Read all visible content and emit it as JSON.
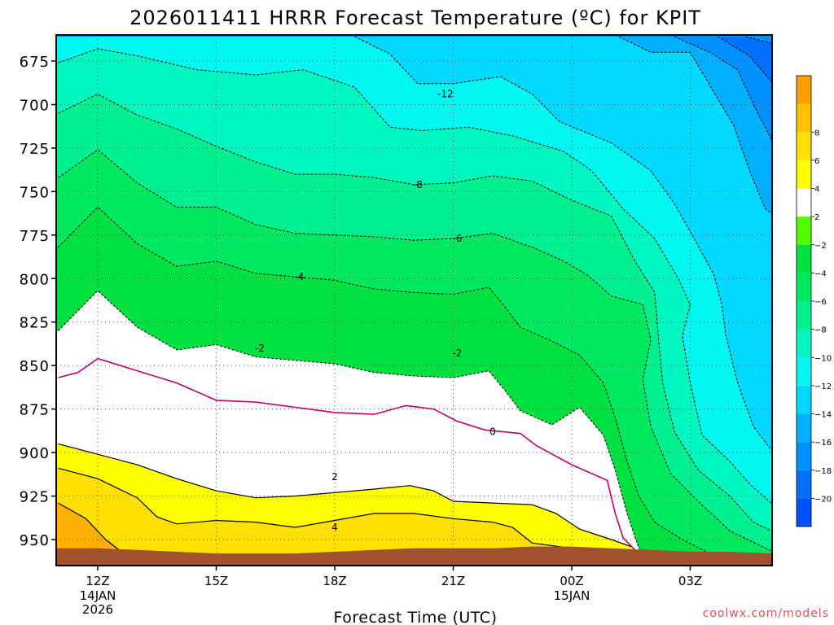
{
  "chart_data": {
    "type": "heatmap",
    "title": "2026011411 HRRR Forecast Temperature (ºC) for KPIT",
    "xlabel": "Forecast Time (UTC)",
    "ylabel": "",
    "credit": "coolwx.com/models",
    "x_unit": "forecast hour",
    "xlim": [
      -1,
      17.5
    ],
    "ylim": [
      960,
      661
    ],
    "y_axis": "pressure (hPa), inverted",
    "y_ticks": [
      675,
      700,
      725,
      750,
      775,
      800,
      825,
      850,
      875,
      900,
      925,
      950
    ],
    "x_ticks": [
      {
        "x": 0,
        "label": "12Z",
        "sub": [
          "14JAN",
          "2026"
        ]
      },
      {
        "x": 3,
        "label": "15Z",
        "sub": []
      },
      {
        "x": 6,
        "label": "18Z",
        "sub": []
      },
      {
        "x": 9,
        "label": "21Z",
        "sub": []
      },
      {
        "x": 12,
        "label": "00Z",
        "sub": [
          "15JAN"
        ]
      },
      {
        "x": 15,
        "label": "03Z",
        "sub": []
      }
    ],
    "colorbar": {
      "levels": [
        -22,
        -20,
        -18,
        -16,
        -14,
        -12,
        -10,
        -8,
        -6,
        -4,
        -2,
        2,
        4,
        6,
        8,
        10
      ],
      "colors": [
        "#0050ff",
        "#0070ff",
        "#0090ff",
        "#00b0ff",
        "#00d8ff",
        "#00f8f0",
        "#00f8c0",
        "#00f090",
        "#00e860",
        "#00e040",
        "#50ff00",
        "#ffffff",
        "#ffff00",
        "#ffe000",
        "#ffc000",
        "#ffa000"
      ],
      "tick_labels": [
        -20,
        -18,
        -16,
        -14,
        -12,
        -10,
        -8,
        -6,
        -4,
        -2,
        2,
        4,
        6,
        8
      ]
    },
    "contour_labels": [
      {
        "value": "-12",
        "x": 8.8,
        "p": 694
      },
      {
        "value": "-8",
        "x": 8.1,
        "p": 746
      },
      {
        "value": "-6",
        "x": 9.1,
        "p": 777
      },
      {
        "value": "-4",
        "x": 5.1,
        "p": 799
      },
      {
        "value": "-2",
        "x": 4.1,
        "p": 840
      },
      {
        "value": "-2",
        "x": 9.1,
        "p": 843
      },
      {
        "value": "0",
        "x": 10.0,
        "p": 888
      },
      {
        "value": "2",
        "x": 6.0,
        "p": 914
      },
      {
        "value": "4",
        "x": 6.0,
        "p": 943
      }
    ],
    "contours": [
      {
        "value": -20,
        "style": "dash",
        "points": [
          [
            16.4,
            661
          ],
          [
            17.1,
            665
          ],
          [
            17.5,
            678
          ]
        ]
      },
      {
        "value": -18,
        "style": "dash",
        "points": [
          [
            15.7,
            661
          ],
          [
            16.5,
            672
          ],
          [
            17.1,
            688
          ],
          [
            17.5,
            702
          ]
        ]
      },
      {
        "value": -16,
        "style": "dash",
        "points": [
          [
            14.6,
            661
          ],
          [
            15.5,
            670
          ],
          [
            16.2,
            680
          ],
          [
            16.6,
            700
          ],
          [
            17.1,
            722
          ],
          [
            17.5,
            746
          ]
        ]
      },
      {
        "value": -14,
        "style": "dash",
        "points": [
          [
            13.2,
            661
          ],
          [
            14.0,
            670
          ],
          [
            15.0,
            670
          ],
          [
            15.6,
            693
          ],
          [
            16.1,
            712
          ],
          [
            16.5,
            738
          ],
          [
            16.9,
            760
          ],
          [
            17.5,
            770
          ]
        ]
      },
      {
        "value": -12,
        "style": "dash",
        "points": [
          [
            6.5,
            661
          ],
          [
            7.4,
            671
          ],
          [
            8.1,
            688
          ],
          [
            9.0,
            688
          ],
          [
            10.2,
            684
          ],
          [
            11.0,
            694
          ],
          [
            11.7,
            710
          ],
          [
            13.0,
            722
          ],
          [
            14.0,
            738
          ],
          [
            14.6,
            757
          ],
          [
            15.1,
            777
          ],
          [
            15.6,
            798
          ],
          [
            15.8,
            815
          ],
          [
            15.9,
            833
          ],
          [
            16.2,
            860
          ],
          [
            16.6,
            885
          ],
          [
            17.1,
            900
          ],
          [
            17.5,
            908
          ]
        ]
      },
      {
        "value": -10,
        "style": "dash",
        "points": [
          [
            -1,
            676
          ],
          [
            0,
            668
          ],
          [
            1,
            672
          ],
          [
            2.5,
            680
          ],
          [
            4,
            683
          ],
          [
            5.2,
            680
          ],
          [
            6.5,
            690
          ],
          [
            7.4,
            713
          ],
          [
            8.2,
            715
          ],
          [
            9.4,
            713
          ],
          [
            10.5,
            718
          ],
          [
            11.8,
            727
          ],
          [
            12.5,
            738
          ],
          [
            13.3,
            760
          ],
          [
            14.1,
            777
          ],
          [
            14.7,
            800
          ],
          [
            15.0,
            815
          ],
          [
            14.8,
            833
          ],
          [
            15.0,
            860
          ],
          [
            15.3,
            890
          ],
          [
            16.0,
            905
          ],
          [
            16.5,
            918
          ],
          [
            17.2,
            932
          ],
          [
            17.5,
            937
          ]
        ]
      },
      {
        "value": -8,
        "style": "dash",
        "points": [
          [
            -1,
            705
          ],
          [
            0,
            694
          ],
          [
            1,
            706
          ],
          [
            2,
            714
          ],
          [
            3,
            724
          ],
          [
            4,
            733
          ],
          [
            5,
            740
          ],
          [
            6,
            740
          ],
          [
            7,
            742
          ],
          [
            8,
            746
          ],
          [
            9,
            745
          ],
          [
            10,
            741
          ],
          [
            11,
            744
          ],
          [
            12,
            755
          ],
          [
            13,
            764
          ],
          [
            13.6,
            790
          ],
          [
            14.1,
            808
          ],
          [
            14.2,
            835
          ],
          [
            14.3,
            860
          ],
          [
            14.6,
            888
          ],
          [
            15.2,
            910
          ],
          [
            16.0,
            925
          ],
          [
            16.6,
            940
          ],
          [
            17.5,
            950
          ]
        ]
      },
      {
        "value": -6,
        "style": "dash",
        "points": [
          [
            -1,
            742
          ],
          [
            0,
            726
          ],
          [
            1,
            745
          ],
          [
            2,
            759
          ],
          [
            3,
            759
          ],
          [
            4,
            769
          ],
          [
            5,
            774
          ],
          [
            6,
            775
          ],
          [
            7,
            776
          ],
          [
            8,
            778
          ],
          [
            9,
            777
          ],
          [
            10,
            774
          ],
          [
            11,
            782
          ],
          [
            11.8,
            790
          ],
          [
            12.4,
            798
          ],
          [
            13.0,
            810
          ],
          [
            13.8,
            815
          ],
          [
            14.0,
            835
          ],
          [
            13.8,
            858
          ],
          [
            14.0,
            885
          ],
          [
            14.5,
            912
          ],
          [
            15.2,
            928
          ],
          [
            16.0,
            945
          ],
          [
            17.0,
            956
          ],
          [
            17.5,
            958
          ]
        ]
      },
      {
        "value": -4,
        "style": "dash",
        "points": [
          [
            -1,
            782
          ],
          [
            0,
            759
          ],
          [
            1,
            780
          ],
          [
            2,
            793
          ],
          [
            3,
            790
          ],
          [
            4,
            797
          ],
          [
            5,
            799
          ],
          [
            6,
            801
          ],
          [
            7,
            806
          ],
          [
            8,
            808
          ],
          [
            9,
            809
          ],
          [
            9.9,
            805
          ],
          [
            10.3,
            816
          ],
          [
            10.7,
            828
          ],
          [
            11.5,
            836
          ],
          [
            12.2,
            844
          ],
          [
            12.8,
            860
          ],
          [
            13.1,
            880
          ],
          [
            13.4,
            905
          ],
          [
            13.7,
            925
          ],
          [
            14.1,
            940
          ],
          [
            14.8,
            950
          ],
          [
            15.5,
            958
          ],
          [
            16.0,
            960
          ]
        ]
      }
    ],
    "isotherms_positive": [
      {
        "value": 0,
        "color": "#c0006a",
        "points": [
          [
            -1,
            857
          ],
          [
            -0.5,
            854
          ],
          [
            0,
            846
          ],
          [
            1,
            853
          ],
          [
            2,
            860
          ],
          [
            3,
            870
          ],
          [
            4,
            871
          ],
          [
            5,
            874
          ],
          [
            6,
            877
          ],
          [
            7,
            878
          ],
          [
            7.8,
            873
          ],
          [
            8.5,
            875
          ],
          [
            9.1,
            882
          ],
          [
            9.8,
            887
          ],
          [
            10.7,
            889
          ],
          [
            11.1,
            896
          ],
          [
            12.0,
            907
          ],
          [
            12.9,
            916
          ],
          [
            13.1,
            935
          ],
          [
            13.3,
            949
          ],
          [
            13.6,
            956
          ]
        ]
      },
      {
        "value": 2,
        "color": "#000000",
        "points": [
          [
            -1,
            895
          ],
          [
            0,
            901
          ],
          [
            1,
            907
          ],
          [
            2,
            915
          ],
          [
            3,
            922
          ],
          [
            4,
            926
          ],
          [
            5,
            925
          ],
          [
            6,
            923
          ],
          [
            7,
            921
          ],
          [
            7.9,
            919
          ],
          [
            8.5,
            922
          ],
          [
            9.0,
            928
          ],
          [
            10,
            929
          ],
          [
            11.0,
            930
          ],
          [
            11.6,
            935
          ],
          [
            12.2,
            944
          ],
          [
            13.0,
            950
          ],
          [
            13.5,
            954
          ]
        ]
      },
      {
        "value": 4,
        "color": "#000000",
        "points": [
          [
            -1,
            909
          ],
          [
            0,
            915
          ],
          [
            1,
            926
          ],
          [
            1.5,
            937
          ],
          [
            2,
            941
          ],
          [
            3,
            939
          ],
          [
            4,
            940
          ],
          [
            5,
            943
          ],
          [
            6,
            939
          ],
          [
            7,
            935
          ],
          [
            8.0,
            935
          ],
          [
            9,
            938
          ],
          [
            10,
            940
          ],
          [
            10.5,
            943
          ],
          [
            11.0,
            952
          ],
          [
            12.0,
            955
          ],
          [
            12.7,
            957
          ]
        ]
      },
      {
        "value": 6,
        "color": "#000000",
        "points": [
          [
            -1,
            929
          ],
          [
            -0.3,
            938
          ],
          [
            0.2,
            950
          ],
          [
            0.6,
            957
          ],
          [
            0.8,
            960
          ]
        ]
      }
    ],
    "surface": {
      "color": "#a0522d",
      "points": [
        [
          -1,
          955
        ],
        [
          0,
          955
        ],
        [
          1,
          956
        ],
        [
          2,
          957
        ],
        [
          3,
          958
        ],
        [
          4,
          958
        ],
        [
          5,
          958
        ],
        [
          6,
          957
        ],
        [
          7,
          956
        ],
        [
          8,
          955
        ],
        [
          9,
          955
        ],
        [
          10,
          955
        ],
        [
          11,
          954
        ],
        [
          12,
          954
        ],
        [
          13,
          955
        ],
        [
          14,
          956
        ],
        [
          15,
          957
        ],
        [
          16,
          957
        ],
        [
          17,
          958
        ],
        [
          17.5,
          958
        ]
      ]
    }
  }
}
